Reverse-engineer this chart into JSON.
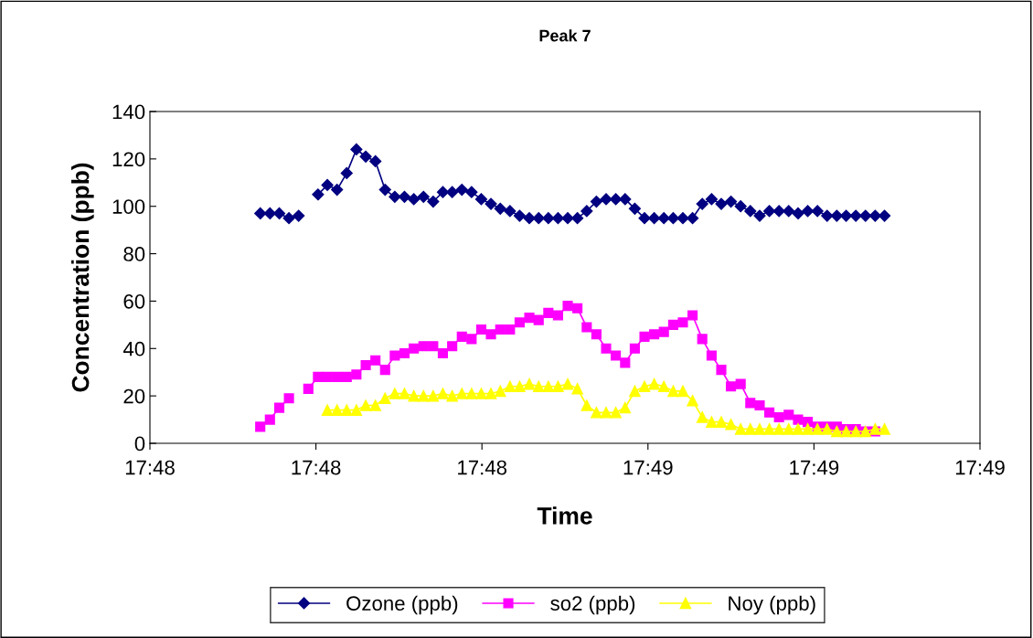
{
  "chart_data": {
    "type": "line",
    "title": "Peak 7",
    "xlabel": "Time",
    "ylabel": "Concentration (ppb)",
    "x": [
      17.80039,
      17.80067,
      17.80094,
      17.80122,
      17.8015,
      17.80178,
      17.80206,
      17.80233,
      17.80261,
      17.80289,
      17.80317,
      17.80344,
      17.80372,
      17.804,
      17.80428,
      17.80456,
      17.80483,
      17.80511,
      17.80539,
      17.80567,
      17.80594,
      17.80622,
      17.8065,
      17.80678,
      17.80706,
      17.80733,
      17.80761,
      17.80789,
      17.80817,
      17.80844,
      17.80872,
      17.809,
      17.80928,
      17.80956,
      17.80983,
      17.81011,
      17.81039,
      17.81067,
      17.81094,
      17.81122,
      17.8115,
      17.81178,
      17.81206,
      17.81233,
      17.81261,
      17.81289,
      17.81317,
      17.81344,
      17.81372,
      17.814,
      17.81428,
      17.81456,
      17.81483,
      17.81511,
      17.81539,
      17.81567,
      17.81594,
      17.81622,
      17.8165,
      17.81678,
      17.81706,
      17.81733,
      17.81761,
      17.81789,
      17.81817,
      17.81844
    ],
    "series": [
      {
        "name": "Ozone (ppb)",
        "color": "#000080",
        "marker": "diamond",
        "values": [
          97,
          97,
          97,
          95,
          96,
          null,
          105,
          109,
          107,
          114,
          124,
          121,
          119,
          107,
          104,
          104,
          103,
          104,
          102,
          106,
          106,
          107,
          106,
          103,
          101,
          99,
          98,
          96,
          95,
          95,
          95,
          95,
          95,
          95,
          98,
          102,
          103,
          103,
          103,
          99,
          95,
          95,
          95,
          95,
          95,
          95,
          101,
          103,
          101,
          102,
          100,
          98,
          96,
          98,
          98,
          98,
          97,
          98,
          98,
          96,
          96,
          96,
          96,
          96,
          96,
          96
        ]
      },
      {
        "name": "so2 (ppb)",
        "color": "#ff00ff",
        "marker": "square",
        "values": [
          7,
          10,
          15,
          19,
          null,
          23,
          28,
          28,
          28,
          28,
          29,
          33,
          35,
          31,
          37,
          38,
          40,
          41,
          41,
          38,
          41,
          45,
          44,
          48,
          46,
          48,
          48,
          51,
          53,
          52,
          55,
          54,
          58,
          57,
          49,
          46,
          40,
          37,
          34,
          40,
          45,
          46,
          47,
          50,
          51,
          54,
          44,
          37,
          31,
          24,
          25,
          17,
          16,
          13,
          11,
          12,
          10,
          9,
          7,
          7,
          7,
          6,
          6,
          5,
          5,
          null
        ]
      },
      {
        "name": "Noy (ppb)",
        "color": "#ffff00",
        "marker": "triangle",
        "values": [
          null,
          null,
          null,
          null,
          null,
          null,
          null,
          14,
          14,
          14,
          14,
          16,
          16,
          19,
          21,
          21,
          20,
          20,
          20,
          21,
          20,
          21,
          21,
          21,
          21,
          22,
          24,
          24,
          25,
          24,
          24,
          24,
          25,
          23,
          16,
          13,
          13,
          13,
          15,
          22,
          24,
          25,
          24,
          22,
          22,
          18,
          11,
          9,
          9,
          8,
          6,
          6,
          6,
          6,
          6,
          6,
          6,
          6,
          6,
          6,
          5,
          5,
          5,
          5,
          6,
          6
        ]
      }
    ],
    "xlim": [
      17.7972,
      17.8212
    ],
    "xticks": [
      {
        "value": 17.7972,
        "label": "17:48"
      },
      {
        "value": 17.802,
        "label": "17:48"
      },
      {
        "value": 17.8068,
        "label": "17:48"
      },
      {
        "value": 17.8116,
        "label": "17:49"
      },
      {
        "value": 17.8164,
        "label": "17:49"
      },
      {
        "value": 17.8212,
        "label": "17:49"
      }
    ],
    "ylim": [
      0,
      140
    ],
    "yticks": [
      0,
      20,
      40,
      60,
      80,
      100,
      120,
      140
    ],
    "grid": false,
    "legend": "bottom",
    "line_style": "solid"
  }
}
